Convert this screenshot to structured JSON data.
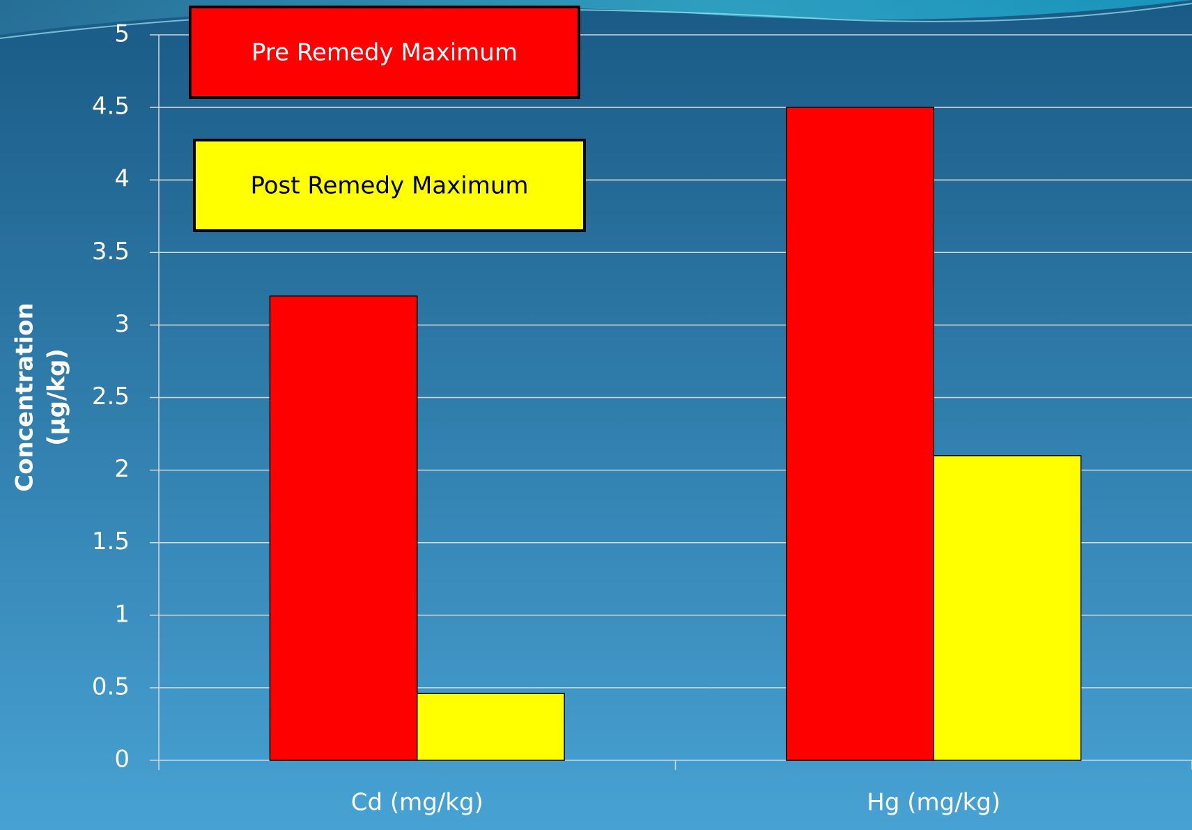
{
  "chart_data": {
    "type": "bar",
    "y_label": [
      "Concentration",
      "(µg/kg)"
    ],
    "categories": [
      "Cd (mg/kg)",
      "Hg (mg/kg)"
    ],
    "series": [
      {
        "name": "Pre Remedy Maximum",
        "color": "#ff0000",
        "values": [
          3.2,
          4.5
        ]
      },
      {
        "name": "Post Remedy Maximum",
        "color": "#ffff00",
        "values": [
          0.46,
          2.1
        ]
      }
    ],
    "ylim": [
      0,
      5
    ],
    "yticks": [
      0,
      0.5,
      1,
      1.5,
      2,
      2.5,
      3,
      3.5,
      4,
      4.5,
      5
    ],
    "grid": true
  }
}
